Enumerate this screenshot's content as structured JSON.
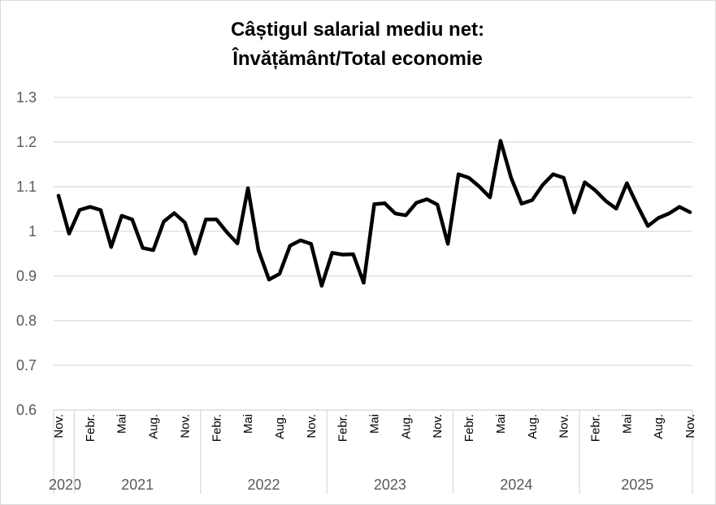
{
  "chart_data": {
    "type": "line",
    "title_line1": "Câștigul salarial mediu net:",
    "title_line2": "Învățământ/Total economie",
    "xlabel": "",
    "ylabel": "",
    "ylim": [
      0.6,
      1.3
    ],
    "y_ticks": [
      "1.3",
      "1.2",
      "1.1",
      "1",
      "0.9",
      "0.8",
      "0.7",
      "0.6"
    ],
    "y_tick_values": [
      1.3,
      1.2,
      1.1,
      1.0,
      0.9,
      0.8,
      0.7,
      0.6
    ],
    "grid": true,
    "line_color": "#000000",
    "grid_color": "#d9d9d9",
    "month_labels": [
      {
        "index": 0,
        "label": "Nov."
      },
      {
        "index": 3,
        "label": "Febr."
      },
      {
        "index": 6,
        "label": "Mai"
      },
      {
        "index": 9,
        "label": "Aug."
      },
      {
        "index": 12,
        "label": "Nov."
      },
      {
        "index": 15,
        "label": "Febr."
      },
      {
        "index": 18,
        "label": "Mai"
      },
      {
        "index": 21,
        "label": "Aug."
      },
      {
        "index": 24,
        "label": "Nov."
      },
      {
        "index": 27,
        "label": "Febr."
      },
      {
        "index": 30,
        "label": "Mai"
      },
      {
        "index": 33,
        "label": "Aug."
      },
      {
        "index": 36,
        "label": "Nov."
      },
      {
        "index": 39,
        "label": "Febr."
      },
      {
        "index": 42,
        "label": "Mai"
      },
      {
        "index": 45,
        "label": "Aug."
      },
      {
        "index": 48,
        "label": "Nov."
      },
      {
        "index": 51,
        "label": "Febr."
      },
      {
        "index": 54,
        "label": "Mai"
      },
      {
        "index": 57,
        "label": "Aug."
      },
      {
        "index": 60,
        "label": "Nov."
      }
    ],
    "year_groups": [
      {
        "label": "2020",
        "start": 0,
        "end": 1
      },
      {
        "label": "2021",
        "start": 2,
        "end": 13
      },
      {
        "label": "2022",
        "start": 14,
        "end": 25
      },
      {
        "label": "2023",
        "start": 26,
        "end": 37
      },
      {
        "label": "2024",
        "start": 38,
        "end": 49
      },
      {
        "label": "2025",
        "start": 50,
        "end": 60
      }
    ],
    "series": [
      {
        "name": "Învățământ/Total economie",
        "values": [
          1.08,
          0.995,
          1.048,
          1.055,
          1.048,
          0.965,
          1.035,
          1.027,
          0.963,
          0.958,
          1.022,
          1.041,
          1.02,
          0.95,
          1.027,
          1.027,
          0.998,
          0.973,
          1.097,
          0.958,
          0.892,
          0.905,
          0.968,
          0.98,
          0.972,
          0.878,
          0.952,
          0.948,
          0.949,
          0.885,
          1.061,
          1.063,
          1.04,
          1.036,
          1.064,
          1.072,
          1.06,
          0.972,
          1.128,
          1.12,
          1.1,
          1.076,
          1.203,
          1.12,
          1.062,
          1.07,
          1.104,
          1.128,
          1.12,
          1.042,
          1.11,
          1.092,
          1.068,
          1.051,
          1.108,
          1.058,
          1.012,
          1.03,
          1.04,
          1.055,
          1.043
        ]
      }
    ]
  }
}
